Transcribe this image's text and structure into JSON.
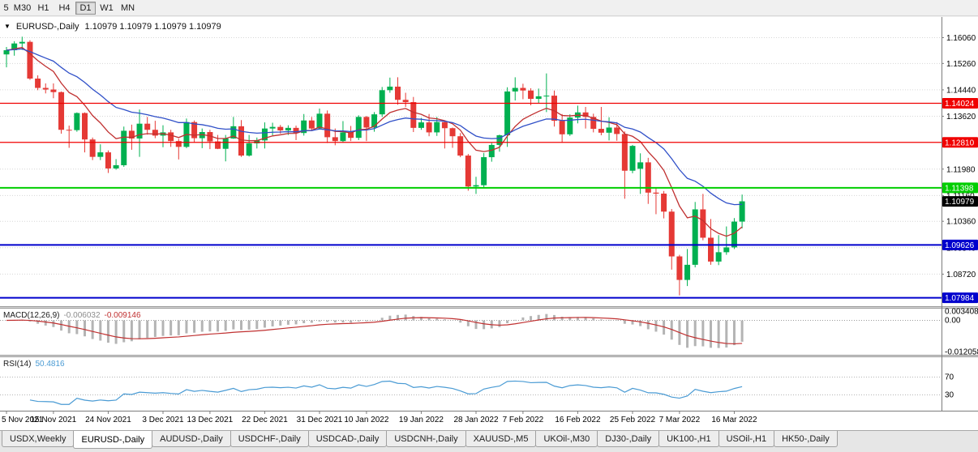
{
  "toolbar": {
    "timeframes": [
      {
        "label": "5",
        "active": false,
        "partial": true
      },
      {
        "label": "M30",
        "active": false
      },
      {
        "label": "H1",
        "active": false
      },
      {
        "label": "H4",
        "active": false
      },
      {
        "label": "D1",
        "active": true
      },
      {
        "label": "W1",
        "active": false
      },
      {
        "label": "MN",
        "active": false
      }
    ]
  },
  "chart": {
    "menu_arrow": "▼",
    "title_symbol": "EURUSD-,Daily",
    "title_quotes": "1.10979 1.10979 1.10979 1.10979"
  },
  "tabs": {
    "items": [
      {
        "label": "USDX,Weekly",
        "active": false
      },
      {
        "label": "EURUSD-,Daily",
        "active": true
      },
      {
        "label": "AUDUSD-,Daily",
        "active": false
      },
      {
        "label": "USDCHF-,Daily",
        "active": false
      },
      {
        "label": "USDCAD-,Daily",
        "active": false
      },
      {
        "label": "USDCNH-,Daily",
        "active": false
      },
      {
        "label": "XAUUSD-,M5",
        "active": false
      },
      {
        "label": "UKOil-,M30",
        "active": false
      },
      {
        "label": "DJ30-,Daily",
        "active": false
      },
      {
        "label": "UK100-,H1",
        "active": false
      },
      {
        "label": "USOil-,H1",
        "active": false
      },
      {
        "label": "HK50-,Daily",
        "active": false
      }
    ]
  },
  "chart_data": {
    "type": "candlestick",
    "title": "EURUSD-,Daily",
    "current_quote": "1.10979",
    "price_range": [
      1.078,
      1.165
    ],
    "colors": {
      "up": "#00b050",
      "down": "#e53935",
      "grid": "#d6d6d6",
      "ma_fast": "#c03030",
      "ma_slow": "#3050c8"
    },
    "ma": [
      {
        "period": 9,
        "color": "#c03030"
      },
      {
        "period": 21,
        "color": "#3050c8"
      }
    ],
    "y_ticks": [
      "1.16060",
      "1.15260",
      "1.14440",
      "1.13620",
      "1.11980",
      "1.11160",
      "1.10360",
      "1.09540",
      "1.08720"
    ],
    "x_ticks": [
      {
        "i": 0,
        "label": "5 Nov 2021"
      },
      {
        "i": 6,
        "label": "15 Nov 2021"
      },
      {
        "i": 13,
        "label": "24 Nov 2021"
      },
      {
        "i": 20,
        "label": "3 Dec 2021"
      },
      {
        "i": 26,
        "label": "13 Dec 2021"
      },
      {
        "i": 33,
        "label": "22 Dec 2021"
      },
      {
        "i": 40,
        "label": "31 Dec 2021"
      },
      {
        "i": 46,
        "label": "10 Jan 2022"
      },
      {
        "i": 53,
        "label": "19 Jan 2022"
      },
      {
        "i": 60,
        "label": "28 Jan 2022"
      },
      {
        "i": 66,
        "label": "7 Feb 2022"
      },
      {
        "i": 73,
        "label": "16 Feb 2022"
      },
      {
        "i": 80,
        "label": "25 Feb 2022"
      },
      {
        "i": 86,
        "label": "7 Mar 2022"
      },
      {
        "i": 93,
        "label": "16 Mar 2022"
      }
    ],
    "hlines": [
      {
        "price": 1.14024,
        "label": "1.14024",
        "color": "#f00000",
        "width": 1.3
      },
      {
        "price": 1.1281,
        "label": "1.12810",
        "color": "#f00000",
        "width": 1.3
      },
      {
        "price": 1.11398,
        "label": "1.11398",
        "color": "#00ce00",
        "width": 2
      },
      {
        "price": 1.09626,
        "label": "1.09626",
        "color": "#0000cd",
        "width": 2
      },
      {
        "price": 1.07984,
        "label": "1.07984",
        "color": "#0000cd",
        "width": 2
      }
    ],
    "price_badge": {
      "label": "1.10979",
      "value": 1.10979,
      "color": "#000000"
    },
    "macd": {
      "label": "MACD(12,26,9)",
      "fast": 12,
      "slow": 26,
      "signal": 9,
      "value_text": "-0.006032",
      "signal_text": "-0.009146",
      "bar_color": "#b4b4b4",
      "line_color": "#c03030",
      "axis_labels": [
        {
          "label": "0.003408",
          "value": 0.003408
        },
        {
          "label": "0.00",
          "value": 0
        },
        {
          "label": "-0.012058",
          "value": -0.012058
        }
      ]
    },
    "rsi": {
      "label": "RSI(14)",
      "period": 14,
      "value_text": "50.4816",
      "color": "#4a9bd4",
      "levels": [
        {
          "label": "70",
          "value": 70
        },
        {
          "label": "30",
          "value": 30
        }
      ]
    },
    "candles": [
      [
        1.1554,
        1.1577,
        1.1514,
        1.1567
      ],
      [
        1.1567,
        1.1595,
        1.155,
        1.1588
      ],
      [
        1.1588,
        1.1609,
        1.1568,
        1.1593
      ],
      [
        1.1593,
        1.1598,
        1.1475,
        1.1479
      ],
      [
        1.1479,
        1.1489,
        1.1443,
        1.145
      ],
      [
        1.145,
        1.1464,
        1.1433,
        1.1445
      ],
      [
        1.1445,
        1.1464,
        1.1418,
        1.1437
      ],
      [
        1.1437,
        1.1439,
        1.1308,
        1.132
      ],
      [
        1.132,
        1.1333,
        1.1264,
        1.1319
      ],
      [
        1.1319,
        1.1374,
        1.1314,
        1.1372
      ],
      [
        1.1372,
        1.1374,
        1.125,
        1.129
      ],
      [
        1.129,
        1.1296,
        1.1226,
        1.1236
      ],
      [
        1.1236,
        1.1275,
        1.1226,
        1.125
      ],
      [
        1.125,
        1.1256,
        1.1186,
        1.12
      ],
      [
        1.12,
        1.1229,
        1.1196,
        1.121
      ],
      [
        1.121,
        1.133,
        1.1205,
        1.1317
      ],
      [
        1.1317,
        1.1336,
        1.1258,
        1.1293
      ],
      [
        1.1293,
        1.1383,
        1.1236,
        1.1339
      ],
      [
        1.1339,
        1.136,
        1.1305,
        1.132
      ],
      [
        1.132,
        1.1348,
        1.1294,
        1.1302
      ],
      [
        1.1302,
        1.1334,
        1.1266,
        1.1312
      ],
      [
        1.1312,
        1.132,
        1.1267,
        1.1285
      ],
      [
        1.1285,
        1.1292,
        1.1228,
        1.1267
      ],
      [
        1.1267,
        1.1355,
        1.1263,
        1.1344
      ],
      [
        1.1344,
        1.1349,
        1.128,
        1.1294
      ],
      [
        1.1294,
        1.1324,
        1.1263,
        1.1313
      ],
      [
        1.1313,
        1.132,
        1.126,
        1.1284
      ],
      [
        1.1284,
        1.1304,
        1.126,
        1.1261
      ],
      [
        1.1261,
        1.1304,
        1.1222,
        1.1293
      ],
      [
        1.1293,
        1.136,
        1.1292,
        1.1331
      ],
      [
        1.1331,
        1.135,
        1.1236,
        1.124
      ],
      [
        1.124,
        1.1304,
        1.1237,
        1.1278
      ],
      [
        1.1278,
        1.1296,
        1.1262,
        1.1287
      ],
      [
        1.1287,
        1.1343,
        1.1262,
        1.1324
      ],
      [
        1.1324,
        1.1342,
        1.1303,
        1.1329
      ],
      [
        1.1329,
        1.1335,
        1.1308,
        1.1318
      ],
      [
        1.1318,
        1.1334,
        1.1304,
        1.1326
      ],
      [
        1.1326,
        1.1333,
        1.1288,
        1.131
      ],
      [
        1.131,
        1.1369,
        1.1302,
        1.1349
      ],
      [
        1.1349,
        1.136,
        1.1316,
        1.1324
      ],
      [
        1.1324,
        1.1386,
        1.1321,
        1.137
      ],
      [
        1.137,
        1.138,
        1.1279,
        1.1297
      ],
      [
        1.1297,
        1.1324,
        1.1272,
        1.1285
      ],
      [
        1.1285,
        1.1347,
        1.128,
        1.1312
      ],
      [
        1.1312,
        1.1332,
        1.1285,
        1.1295
      ],
      [
        1.1295,
        1.1365,
        1.1288,
        1.136
      ],
      [
        1.136,
        1.1363,
        1.1285,
        1.1327
      ],
      [
        1.1327,
        1.1375,
        1.1314,
        1.1368
      ],
      [
        1.1368,
        1.1453,
        1.136,
        1.1443
      ],
      [
        1.1443,
        1.1482,
        1.1435,
        1.1454
      ],
      [
        1.1454,
        1.1483,
        1.1398,
        1.1413
      ],
      [
        1.1413,
        1.1435,
        1.1391,
        1.1406
      ],
      [
        1.1406,
        1.1422,
        1.1313,
        1.1326
      ],
      [
        1.1326,
        1.1357,
        1.132,
        1.1343
      ],
      [
        1.1343,
        1.1369,
        1.13,
        1.1312
      ],
      [
        1.1312,
        1.136,
        1.1301,
        1.1344
      ],
      [
        1.1344,
        1.1349,
        1.1262,
        1.1325
      ],
      [
        1.1325,
        1.1327,
        1.1264,
        1.13
      ],
      [
        1.13,
        1.131,
        1.1235,
        1.124
      ],
      [
        1.124,
        1.1245,
        1.1131,
        1.1144
      ],
      [
        1.1144,
        1.1174,
        1.1121,
        1.1148
      ],
      [
        1.1148,
        1.1248,
        1.1141,
        1.1235
      ],
      [
        1.1235,
        1.1279,
        1.1221,
        1.1273
      ],
      [
        1.1273,
        1.1305,
        1.1252,
        1.1303
      ],
      [
        1.1303,
        1.1452,
        1.1267,
        1.1439
      ],
      [
        1.1439,
        1.1483,
        1.1411,
        1.145
      ],
      [
        1.145,
        1.1463,
        1.1415,
        1.1442
      ],
      [
        1.1442,
        1.1449,
        1.1396,
        1.1416
      ],
      [
        1.1416,
        1.1448,
        1.1403,
        1.1424
      ],
      [
        1.1424,
        1.1495,
        1.1375,
        1.1426
      ],
      [
        1.1426,
        1.1442,
        1.133,
        1.1348
      ],
      [
        1.1348,
        1.1369,
        1.128,
        1.1306
      ],
      [
        1.1306,
        1.1368,
        1.1301,
        1.1358
      ],
      [
        1.1358,
        1.1395,
        1.134,
        1.1374
      ],
      [
        1.1374,
        1.1391,
        1.1324,
        1.136
      ],
      [
        1.136,
        1.137,
        1.1312,
        1.1323
      ],
      [
        1.1323,
        1.1391,
        1.1303,
        1.1311
      ],
      [
        1.1311,
        1.1359,
        1.1287,
        1.1327
      ],
      [
        1.1327,
        1.1344,
        1.1286,
        1.1307
      ],
      [
        1.1307,
        1.1315,
        1.1106,
        1.1193
      ],
      [
        1.1193,
        1.1273,
        1.1185,
        1.127
      ],
      [
        1.1199,
        1.1247,
        1.1121,
        1.1219
      ],
      [
        1.1219,
        1.1233,
        1.109,
        1.1125
      ],
      [
        1.1125,
        1.1139,
        1.1058,
        1.1122
      ],
      [
        1.1122,
        1.113,
        1.1045,
        1.1066
      ],
      [
        1.1066,
        1.1074,
        1.0886,
        1.0927
      ],
      [
        1.0927,
        1.0932,
        1.0806,
        1.0854
      ],
      [
        1.0854,
        1.095,
        1.0835,
        1.0901
      ],
      [
        1.0901,
        1.1096,
        1.0893,
        1.1073
      ],
      [
        1.1073,
        1.1121,
        1.0977,
        1.0985
      ],
      [
        1.0985,
        1.1043,
        1.0901,
        1.0911
      ],
      [
        1.0911,
        1.0993,
        1.09,
        1.094
      ],
      [
        1.094,
        1.102,
        1.0932,
        1.0955
      ],
      [
        1.0955,
        1.1046,
        1.095,
        1.1035
      ],
      [
        1.1035,
        1.1119,
        1.1014,
        1.1098
      ]
    ]
  }
}
